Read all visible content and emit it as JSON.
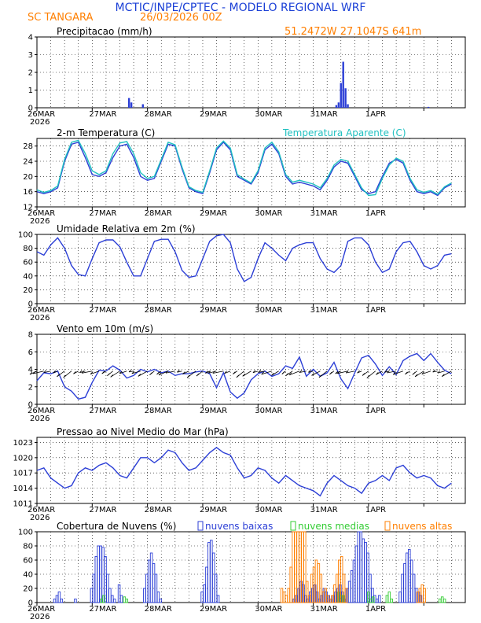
{
  "header": {
    "title": "MCTIC/INPE/CPTEC - MODELO REGIONAL WRF",
    "station": "SC TANGARA",
    "run": "26/03/2026 00Z",
    "location": "51.2472W 27.1047S 641m"
  },
  "colors": {
    "title": "#1a3fd6",
    "orange": "#ff7f00",
    "blue": "#2c3fd6",
    "cyan": "#20c0c0",
    "green": "#33cc33"
  },
  "chart_data": [
    {
      "type": "bar",
      "title": "Precipitacao (mm/h)",
      "ylim": [
        0,
        4
      ],
      "yticks": [
        "0",
        "1",
        "2",
        "3",
        "4"
      ],
      "xticks": [
        "26MAR",
        "27MAR",
        "28MAR",
        "29MAR",
        "30MAR",
        "31MAR",
        "1APR"
      ],
      "xyear": "2026",
      "x_hours": [
        40,
        41,
        46,
        130,
        131,
        132,
        133,
        134,
        135,
        170
      ],
      "values": [
        0.55,
        0.3,
        0.2,
        0.15,
        0.3,
        1.4,
        2.6,
        1.1,
        0.2,
        0.05
      ]
    },
    {
      "type": "line",
      "title": "2-m Temperatura (C)",
      "legend": "Temperatura Aparente (C)",
      "ylim": [
        12,
        30
      ],
      "yticks": [
        "12",
        "16",
        "20",
        "24",
        "28"
      ],
      "xticks": [
        "26MAR",
        "27MAR",
        "28MAR",
        "29MAR",
        "30MAR",
        "31MAR",
        "1APR"
      ],
      "xyear": "2026",
      "series": [
        {
          "name": "2-m Temperatura (C)",
          "color": "#2c3fd6",
          "x": [
            0,
            3,
            6,
            9,
            12,
            15,
            18,
            21,
            24,
            27,
            30,
            33,
            36,
            39,
            42,
            45,
            48,
            51,
            54,
            57,
            60,
            63,
            66,
            69,
            72,
            75,
            78,
            81,
            84,
            87,
            90,
            93,
            96,
            99,
            102,
            105,
            108,
            111,
            114,
            117,
            120,
            123,
            126,
            129,
            132,
            135,
            138,
            141,
            144,
            147,
            150,
            153,
            156,
            159,
            162,
            165,
            168,
            171,
            174,
            177,
            180
          ],
          "values": [
            16,
            15.5,
            16,
            17,
            24,
            28.5,
            29,
            25,
            20.5,
            20,
            21,
            25,
            28,
            28.5,
            25,
            20,
            19,
            19.5,
            24,
            28.5,
            28,
            22,
            17,
            16,
            15.5,
            21,
            27,
            29,
            27,
            20,
            19,
            18,
            21,
            27,
            28.5,
            26,
            20,
            18,
            18.5,
            18,
            17.5,
            16.5,
            19,
            22.5,
            24,
            23.5,
            20,
            16.5,
            15.5,
            16,
            20,
            23.5,
            24.5,
            23.5,
            19,
            16,
            15.5,
            16,
            15,
            17,
            18
          ]
        },
        {
          "name": "Temperatura Aparente (C)",
          "color": "#20c0c0",
          "x": [
            0,
            3,
            6,
            9,
            12,
            15,
            18,
            21,
            24,
            27,
            30,
            33,
            36,
            39,
            42,
            45,
            48,
            51,
            54,
            57,
            60,
            63,
            66,
            69,
            72,
            75,
            78,
            81,
            84,
            87,
            90,
            93,
            96,
            99,
            102,
            105,
            108,
            111,
            114,
            117,
            120,
            123,
            126,
            129,
            132,
            135,
            138,
            141,
            144,
            147,
            150,
            153,
            156,
            159,
            162,
            165,
            168,
            171,
            174,
            177,
            180
          ],
          "values": [
            16.5,
            15.8,
            16.3,
            17.5,
            24.5,
            29,
            29.5,
            26,
            21.5,
            20.5,
            21.5,
            26,
            28.8,
            29.2,
            26,
            21,
            19.5,
            20,
            24.5,
            29,
            28.3,
            22.5,
            17.3,
            16.3,
            15.8,
            21.5,
            27.5,
            29.3,
            27.5,
            20.5,
            19.3,
            18.3,
            21.5,
            27.5,
            29,
            26.5,
            20.5,
            18.5,
            19,
            18.5,
            18,
            17,
            19.5,
            23,
            24.5,
            24,
            20.5,
            17,
            15,
            15.2,
            19.5,
            23,
            24.8,
            24,
            19.5,
            16.5,
            15.8,
            16.3,
            15.3,
            17.3,
            18.3
          ]
        }
      ]
    },
    {
      "type": "line",
      "title": "Umidade Relativa em 2m (%)",
      "ylim": [
        0,
        100
      ],
      "yticks": [
        "0",
        "20",
        "40",
        "60",
        "80",
        "100"
      ],
      "xticks": [
        "26MAR",
        "27MAR",
        "28MAR",
        "29MAR",
        "30MAR",
        "31MAR",
        "1APR"
      ],
      "xyear": "2026",
      "series": [
        {
          "name": "Umidade Relativa",
          "color": "#2c3fd6",
          "x": [
            0,
            3,
            6,
            9,
            12,
            15,
            18,
            21,
            24,
            27,
            30,
            33,
            36,
            39,
            42,
            45,
            48,
            51,
            54,
            57,
            60,
            63,
            66,
            69,
            72,
            75,
            78,
            81,
            84,
            87,
            90,
            93,
            96,
            99,
            102,
            105,
            108,
            111,
            114,
            117,
            120,
            123,
            126,
            129,
            132,
            135,
            138,
            141,
            144,
            147,
            150,
            153,
            156,
            159,
            162,
            165,
            168,
            171,
            174,
            177,
            180
          ],
          "values": [
            75,
            70,
            85,
            95,
            80,
            55,
            42,
            40,
            65,
            88,
            92,
            92,
            82,
            60,
            40,
            40,
            65,
            90,
            93,
            93,
            75,
            48,
            38,
            40,
            65,
            90,
            98,
            100,
            88,
            50,
            32,
            38,
            65,
            88,
            80,
            70,
            62,
            80,
            85,
            88,
            88,
            65,
            50,
            45,
            55,
            90,
            95,
            95,
            85,
            60,
            45,
            50,
            75,
            88,
            90,
            75,
            55,
            50,
            55,
            70,
            72
          ]
        }
      ]
    },
    {
      "type": "line",
      "title": "Vento em 10m (m/s)",
      "ylim": [
        0,
        8
      ],
      "yticks": [
        "0",
        "2",
        "4",
        "6",
        "8"
      ],
      "xticks": [
        "26MAR",
        "27MAR",
        "28MAR",
        "29MAR",
        "30MAR",
        "31MAR",
        "1APR"
      ],
      "xyear": "2026",
      "series": [
        {
          "name": "Vento em 10m",
          "color": "#2c3fd6",
          "x": [
            0,
            3,
            6,
            9,
            12,
            15,
            18,
            21,
            24,
            27,
            30,
            33,
            36,
            39,
            42,
            45,
            48,
            51,
            54,
            57,
            60,
            63,
            66,
            69,
            72,
            75,
            78,
            81,
            84,
            87,
            90,
            93,
            96,
            99,
            102,
            105,
            108,
            111,
            114,
            117,
            120,
            123,
            126,
            129,
            132,
            135,
            138,
            141,
            144,
            147,
            150,
            153,
            156,
            159,
            162,
            165,
            168,
            171,
            174,
            177,
            180
          ],
          "values": [
            2.7,
            3.6,
            3.5,
            3.8,
            2,
            1.5,
            0.6,
            0.8,
            2.5,
            3.9,
            3.8,
            4.4,
            3.9,
            3,
            3.3,
            4,
            3.7,
            4,
            3.6,
            3.8,
            3.3,
            3.5,
            3.5,
            3.7,
            3.8,
            3.5,
            1.9,
            3.6,
            1.4,
            0.7,
            1.3,
            2.8,
            3.5,
            3.8,
            3.2,
            3.5,
            4.4,
            4.1,
            5.4,
            3.2,
            4,
            3.2,
            3.6,
            4.8,
            2.9,
            1.8,
            3.6,
            5.3,
            5.6,
            4.6,
            3.3,
            4.3,
            3.4,
            5,
            5.5,
            5.8,
            5,
            5.8,
            4.8,
            3.9,
            3.5
          ]
        }
      ]
    },
    {
      "type": "line",
      "title": "Pressao ao Nivel Medio do Mar (hPa)",
      "ylim": [
        1011,
        1024
      ],
      "yticks": [
        "1011",
        "1014",
        "1017",
        "1020",
        "1023"
      ],
      "xticks": [
        "26MAR",
        "27MAR",
        "28MAR",
        "29MAR",
        "30MAR",
        "31MAR",
        "1APR"
      ],
      "xyear": "2026",
      "series": [
        {
          "name": "Pressao",
          "color": "#2c3fd6",
          "x": [
            0,
            3,
            6,
            9,
            12,
            15,
            18,
            21,
            24,
            27,
            30,
            33,
            36,
            39,
            42,
            45,
            48,
            51,
            54,
            57,
            60,
            63,
            66,
            69,
            72,
            75,
            78,
            81,
            84,
            87,
            90,
            93,
            96,
            99,
            102,
            105,
            108,
            111,
            114,
            117,
            120,
            123,
            126,
            129,
            132,
            135,
            138,
            141,
            144,
            147,
            150,
            153,
            156,
            159,
            162,
            165,
            168,
            171,
            174,
            177,
            180
          ],
          "values": [
            1017.5,
            1018,
            1016,
            1015,
            1014,
            1014.5,
            1017,
            1018,
            1017.5,
            1018.5,
            1019,
            1018,
            1016.5,
            1016,
            1018,
            1020,
            1020,
            1019,
            1020,
            1021.5,
            1021,
            1019,
            1017.5,
            1018,
            1019.5,
            1021,
            1022,
            1021,
            1020.5,
            1018,
            1016,
            1016.5,
            1018,
            1017.5,
            1016,
            1015,
            1016.5,
            1015.5,
            1014.5,
            1014,
            1013.5,
            1012.5,
            1015,
            1016.5,
            1015.5,
            1014.5,
            1014,
            1013,
            1015,
            1015.5,
            1016.5,
            1015.5,
            1018,
            1018.5,
            1017,
            1016,
            1016.5,
            1016,
            1014.5,
            1014,
            1015
          ]
        }
      ]
    },
    {
      "type": "bar",
      "title": "Cobertura de Nuvens (%)",
      "ylim": [
        0,
        100
      ],
      "yticks": [
        "0",
        "20",
        "40",
        "60",
        "80",
        "100"
      ],
      "xticks": [
        "26MAR",
        "27MAR",
        "28MAR",
        "29MAR",
        "30MAR",
        "31MAR",
        "1APR"
      ],
      "xyear": "2026",
      "series": [
        {
          "name": "nuvens baixas",
          "color": "#2c3fd6",
          "x": [
            8,
            9,
            10,
            11,
            17,
            24,
            25,
            26,
            27,
            28,
            29,
            30,
            31,
            32,
            33,
            34,
            36,
            37,
            47,
            48,
            49,
            50,
            51,
            52,
            53,
            54,
            72,
            73,
            74,
            75,
            76,
            77,
            78,
            79,
            112,
            113,
            114,
            115,
            116,
            117,
            118,
            119,
            120,
            121,
            122,
            123,
            124,
            125,
            126,
            127,
            128,
            129,
            130,
            131,
            132,
            133,
            134,
            135,
            136,
            137,
            138,
            139,
            140,
            141,
            142,
            143,
            144,
            145,
            146,
            147,
            148,
            149,
            158,
            159,
            160,
            161,
            162,
            163,
            164,
            165,
            166,
            167
          ],
          "values": [
            5,
            10,
            15,
            5,
            5,
            20,
            40,
            65,
            80,
            80,
            78,
            65,
            40,
            20,
            10,
            5,
            25,
            10,
            20,
            40,
            60,
            70,
            55,
            40,
            15,
            5,
            15,
            25,
            50,
            85,
            88,
            70,
            40,
            10,
            5,
            10,
            20,
            30,
            25,
            10,
            5,
            15,
            20,
            25,
            15,
            5,
            10,
            20,
            15,
            10,
            5,
            10,
            15,
            20,
            25,
            15,
            5,
            20,
            30,
            45,
            60,
            80,
            100,
            100,
            90,
            85,
            70,
            40,
            20,
            10,
            5,
            10,
            15,
            40,
            55,
            70,
            75,
            60,
            40,
            20,
            15,
            10
          ]
        },
        {
          "name": "nuvens medias",
          "color": "#33cc33",
          "x": [
            28,
            29,
            38,
            39,
            131,
            132,
            133,
            144,
            145,
            146,
            152,
            153,
            154,
            175,
            176,
            177
          ],
          "values": [
            5,
            10,
            8,
            5,
            15,
            10,
            10,
            15,
            5,
            8,
            10,
            15,
            5,
            5,
            8,
            5
          ]
        },
        {
          "name": "nuvens altas",
          "color": "#ff7f00",
          "x": [
            106,
            107,
            108,
            109,
            110,
            111,
            112,
            113,
            114,
            115,
            116,
            117,
            118,
            119,
            120,
            121,
            122,
            123,
            124,
            125,
            126,
            127,
            128,
            129,
            130,
            131,
            132,
            133,
            134,
            165,
            166,
            167,
            168
          ],
          "values": [
            20,
            15,
            10,
            20,
            50,
            100,
            100,
            100,
            100,
            100,
            100,
            30,
            10,
            40,
            50,
            60,
            55,
            40,
            15,
            20,
            10,
            5,
            10,
            25,
            40,
            60,
            65,
            40,
            20,
            15,
            20,
            25,
            20
          ]
        }
      ]
    }
  ]
}
